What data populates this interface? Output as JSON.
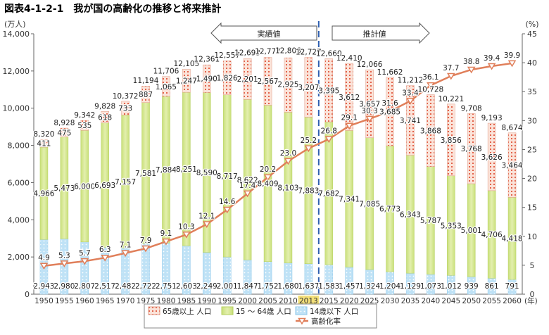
{
  "figure": {
    "title": "図表4-1-2-1　我が国の高齢化の推移と将来推計"
  },
  "chart_data": {
    "type": "bar",
    "stacked": true,
    "categories": [
      "1950",
      "1955",
      "1960",
      "1965",
      "1970",
      "1975",
      "1980",
      "1985",
      "1990",
      "1995",
      "2000",
      "2005",
      "2010",
      "2013",
      "2015",
      "2020",
      "2025",
      "2030",
      "2035",
      "2040",
      "2045",
      "2050",
      "2055",
      "2060"
    ],
    "x_unit": "(年)",
    "highlight_category": "2013",
    "series": [
      {
        "name": "14歳以下 人口",
        "values": [
          2943,
          2980,
          2807,
          2517,
          2482,
          2722,
          2751,
          2603,
          2249,
          2001,
          1847,
          1752,
          1680,
          1637,
          1583,
          1457,
          1324,
          1204,
          1129,
          1073,
          1012,
          939,
          861,
          791
        ],
        "color": "#a9d6f2"
      },
      {
        "name": "15 ～ 64歳 人口",
        "values": [
          4966,
          5473,
          6000,
          6693,
          7157,
          7581,
          7884,
          8251,
          8590,
          8717,
          8622,
          8409,
          8103,
          7883,
          7682,
          7341,
          7085,
          6773,
          6343,
          5787,
          5353,
          5001,
          4706,
          4418
        ],
        "color": "#d5e88c"
      },
      {
        "name": "65歳以上 人口",
        "values": [
          411,
          475,
          535,
          618,
          733,
          887,
          1065,
          1247,
          1490,
          1826,
          2201,
          2567,
          2925,
          3207,
          3395,
          3612,
          3657,
          3685,
          3741,
          3868,
          3856,
          3768,
          3626,
          3464
        ],
        "color": "#f6c8b8"
      }
    ],
    "totals": [
      8320,
      8928,
      9342,
      9828,
      10372,
      11194,
      11706,
      12105,
      12361,
      12557,
      12693,
      12777,
      12806,
      12727,
      12660,
      12410,
      12066,
      11662,
      11212,
      10728,
      10221,
      9708,
      9193,
      8674
    ],
    "line_series": {
      "name": "高齢化率",
      "values": [
        4.9,
        5.3,
        5.7,
        6.3,
        7.1,
        7.9,
        9.1,
        10.3,
        12.1,
        14.6,
        17.4,
        20.2,
        23.0,
        25.2,
        26.8,
        29.1,
        30.3,
        31.6,
        33.4,
        36.1,
        37.7,
        38.8,
        39.4,
        39.9
      ],
      "color": "#e07f5a"
    },
    "y_left": {
      "unit": "(万人)",
      "min": 0,
      "max": 14000,
      "ticks": [
        "0",
        "2,000",
        "4,000",
        "6,000",
        "8,000",
        "10,000",
        "12,000",
        "14,000"
      ]
    },
    "y_right": {
      "unit": "(%)",
      "min": 0,
      "max": 45,
      "ticks": [
        "0",
        "5",
        "10",
        "15",
        "20",
        "25",
        "30",
        "35",
        "40",
        "45"
      ]
    },
    "period_labels": {
      "actual": "実績値",
      "projected": "推計値"
    },
    "grid": false,
    "legend_position": "bottom-left"
  }
}
